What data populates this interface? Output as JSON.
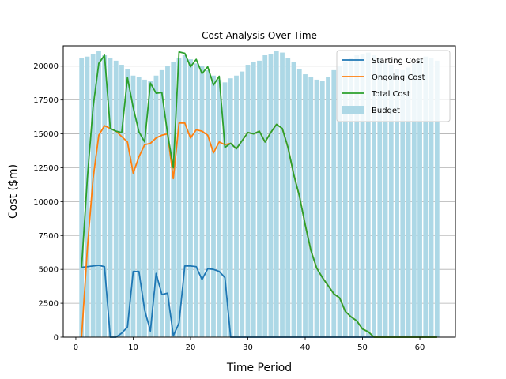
{
  "chart_data": {
    "type": "bar+line",
    "title": "Cost Analysis Over Time",
    "xlabel": "Time Period",
    "ylabel": "Cost ($m)",
    "xlim": [
      -2.2,
      66.2
    ],
    "ylim": [
      0,
      21500
    ],
    "xticks": [
      0,
      10,
      20,
      30,
      40,
      50,
      60
    ],
    "yticks": [
      0,
      2500,
      5000,
      7500,
      10000,
      12500,
      15000,
      17500,
      20000
    ],
    "grid": "y",
    "legend_position": "top-right",
    "bars": {
      "name": "Budget",
      "color": "#add8e6",
      "x": [
        1,
        2,
        3,
        4,
        5,
        6,
        7,
        8,
        9,
        10,
        11,
        12,
        13,
        14,
        15,
        16,
        17,
        18,
        19,
        20,
        21,
        22,
        23,
        24,
        25,
        26,
        27,
        28,
        29,
        30,
        31,
        32,
        33,
        34,
        35,
        36,
        37,
        38,
        39,
        40,
        41,
        42,
        43,
        44,
        45,
        46,
        47,
        48,
        49,
        50,
        51,
        52,
        53,
        54,
        55,
        56,
        57,
        58,
        59,
        60,
        61,
        62,
        63
      ],
      "values": [
        20600,
        20700,
        20900,
        21100,
        20800,
        20600,
        20400,
        20100,
        19800,
        19300,
        19200,
        19000,
        18900,
        19300,
        19700,
        20000,
        20300,
        20600,
        20800,
        20500,
        20200,
        20000,
        19700,
        19300,
        19000,
        18800,
        19100,
        19300,
        19600,
        20100,
        20300,
        20400,
        20800,
        20900,
        21100,
        21000,
        20600,
        20300,
        19800,
        19400,
        19200,
        19000,
        18900,
        19200,
        19700,
        20000,
        20300,
        20600,
        20800,
        20900,
        21000,
        20800,
        20600,
        20300,
        20100,
        19800,
        19700,
        19900,
        20200,
        20500,
        20700,
        20600,
        20400
      ]
    },
    "series": [
      {
        "name": "Starting Cost",
        "color": "#1f77b4",
        "x": [
          1,
          2,
          3,
          4,
          5,
          6,
          7,
          8,
          9,
          10,
          11,
          12,
          13,
          14,
          15,
          16,
          17,
          18,
          19,
          20,
          21,
          22,
          23,
          24,
          25,
          26,
          27,
          28,
          29,
          30,
          31,
          32,
          33,
          34,
          35,
          36,
          37,
          38,
          39,
          40,
          41,
          42,
          43,
          44,
          45,
          46,
          47,
          48,
          49,
          50,
          51,
          52,
          53,
          54,
          55,
          56,
          57,
          58,
          59,
          60,
          61,
          62,
          63
        ],
        "values": [
          5150,
          5200,
          5250,
          5300,
          5200,
          0,
          0,
          300,
          750,
          4850,
          4850,
          2000,
          450,
          4700,
          3150,
          3250,
          100,
          1050,
          5250,
          5250,
          5200,
          4250,
          5050,
          5000,
          4850,
          4400,
          0,
          0,
          0,
          0,
          0,
          0,
          0,
          0,
          0,
          0,
          0,
          0,
          0,
          0,
          0,
          0,
          0,
          0,
          0,
          0,
          0,
          0,
          0,
          0,
          0,
          0,
          0,
          0,
          0,
          0,
          0,
          0,
          0,
          0,
          0,
          0,
          0
        ]
      },
      {
        "name": "Ongoing Cost",
        "color": "#ff7f0e",
        "x": [
          1,
          2,
          3,
          4,
          5,
          6,
          7,
          8,
          9,
          10,
          11,
          12,
          13,
          14,
          15,
          16,
          17,
          18,
          19,
          20,
          21,
          22,
          23,
          24,
          25,
          26,
          27,
          28,
          29,
          30,
          31,
          32,
          33,
          34,
          35,
          36,
          37,
          38,
          39,
          40,
          41,
          42,
          43,
          44,
          45,
          46,
          47,
          48,
          49,
          50,
          51,
          52,
          53,
          54,
          55,
          56,
          57,
          58,
          59,
          60,
          61,
          62,
          63
        ],
        "values": [
          0,
          6500,
          11700,
          14900,
          15600,
          15400,
          15200,
          14800,
          14400,
          12100,
          13300,
          14200,
          14300,
          14700,
          14900,
          15000,
          11700,
          15800,
          15800,
          14700,
          15300,
          15200,
          14900,
          13600,
          14400,
          14200,
          14300,
          13900,
          14500,
          15100,
          15000,
          15200,
          14400,
          15100,
          15700,
          15400,
          14000,
          12000,
          10400,
          8300,
          6400,
          5100,
          4400,
          3800,
          3200,
          2900,
          1900,
          1500,
          1200,
          600,
          400,
          0,
          0,
          0,
          0,
          0,
          0,
          0,
          0,
          0,
          0,
          0,
          0
        ]
      },
      {
        "name": "Total Cost",
        "color": "#2ca02c",
        "x": [
          1,
          2,
          3,
          4,
          5,
          6,
          7,
          8,
          9,
          10,
          11,
          12,
          13,
          14,
          15,
          16,
          17,
          18,
          19,
          20,
          21,
          22,
          23,
          24,
          25,
          26,
          27,
          28,
          29,
          30,
          31,
          32,
          33,
          34,
          35,
          36,
          37,
          38,
          39,
          40,
          41,
          42,
          43,
          44,
          45,
          46,
          47,
          48,
          49,
          50,
          51,
          52,
          53,
          54,
          55,
          56,
          57,
          58,
          59,
          60,
          61,
          62,
          63
        ],
        "values": [
          5150,
          11700,
          16950,
          20200,
          20800,
          15400,
          15200,
          15100,
          19150,
          16950,
          15150,
          14400,
          18750,
          18000,
          18050,
          15000,
          12500,
          21050,
          20950,
          19950,
          20500,
          19450,
          19950,
          18600,
          19250,
          14000,
          14300,
          13900,
          14500,
          15100,
          15000,
          15200,
          14400,
          15100,
          15700,
          15400,
          14000,
          12000,
          10400,
          8300,
          6400,
          5100,
          4400,
          3800,
          3200,
          2900,
          1900,
          1500,
          1200,
          600,
          400,
          0,
          0,
          0,
          0,
          0,
          0,
          0,
          0,
          0,
          0,
          0,
          0
        ]
      }
    ]
  }
}
